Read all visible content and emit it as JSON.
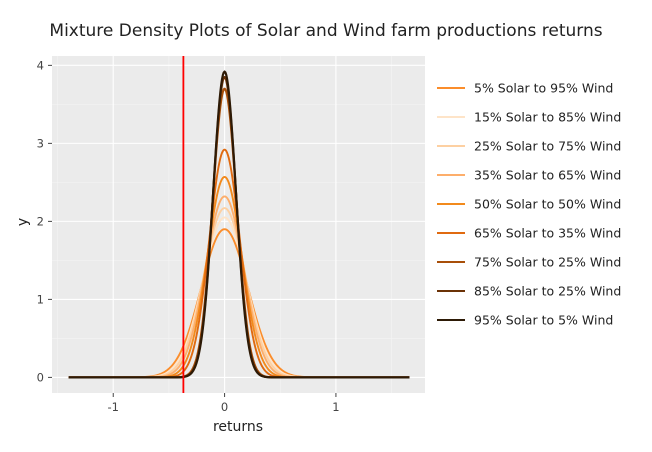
{
  "chart_data": {
    "type": "line",
    "title": "Mixture Density Plots of Solar and Wind farm productions returns",
    "xlabel": "returns",
    "ylabel": "y",
    "xlim": [
      -1.55,
      1.8
    ],
    "ylim": [
      -0.2,
      4.12
    ],
    "x_ticks": [
      -1,
      0,
      1
    ],
    "x_tick_labels": [
      "-1",
      "0",
      "1"
    ],
    "y_ticks": [
      0,
      1,
      2,
      3,
      4
    ],
    "y_tick_labels": [
      "0",
      "1",
      "2",
      "3",
      "4"
    ],
    "x_range": [
      -1.4,
      1.66
    ],
    "grid": true,
    "legend_position": "right",
    "vertical_line": {
      "x": -0.37,
      "color": "#ff0000"
    },
    "series": [
      {
        "name": "5% Solar to 95% Wind",
        "color": "#fb8d2b",
        "peak": 1.9,
        "sigma": 0.21,
        "peak_x": 0.0
      },
      {
        "name": "15% Solar to 85% Wind",
        "color": "#fee4c8",
        "peak": 2.05,
        "sigma": 0.195,
        "peak_x": 0.0
      },
      {
        "name": "25% Solar to 75% Wind",
        "color": "#fdd0a2",
        "peak": 2.17,
        "sigma": 0.185,
        "peak_x": 0.0
      },
      {
        "name": "35% Solar to 65% Wind",
        "color": "#fdae6b",
        "peak": 2.32,
        "sigma": 0.172,
        "peak_x": 0.0
      },
      {
        "name": "50% Solar to 50% Wind",
        "color": "#f28a1c",
        "peak": 2.57,
        "sigma": 0.155,
        "peak_x": 0.0
      },
      {
        "name": "65% Solar to 35% Wind",
        "color": "#e06a10",
        "peak": 2.92,
        "sigma": 0.137,
        "peak_x": 0.0
      },
      {
        "name": "75% Solar to 25% Wind",
        "color": "#a84f09",
        "peak": 3.7,
        "sigma": 0.108,
        "peak_x": 0.0
      },
      {
        "name": "85% Solar to 25% Wind",
        "color": "#6b3207",
        "peak": 3.85,
        "sigma": 0.104,
        "peak_x": 0.0
      },
      {
        "name": "95% Solar to 5% Wind",
        "color": "#2d1a06",
        "peak": 3.92,
        "sigma": 0.102,
        "peak_x": 0.0
      }
    ]
  }
}
